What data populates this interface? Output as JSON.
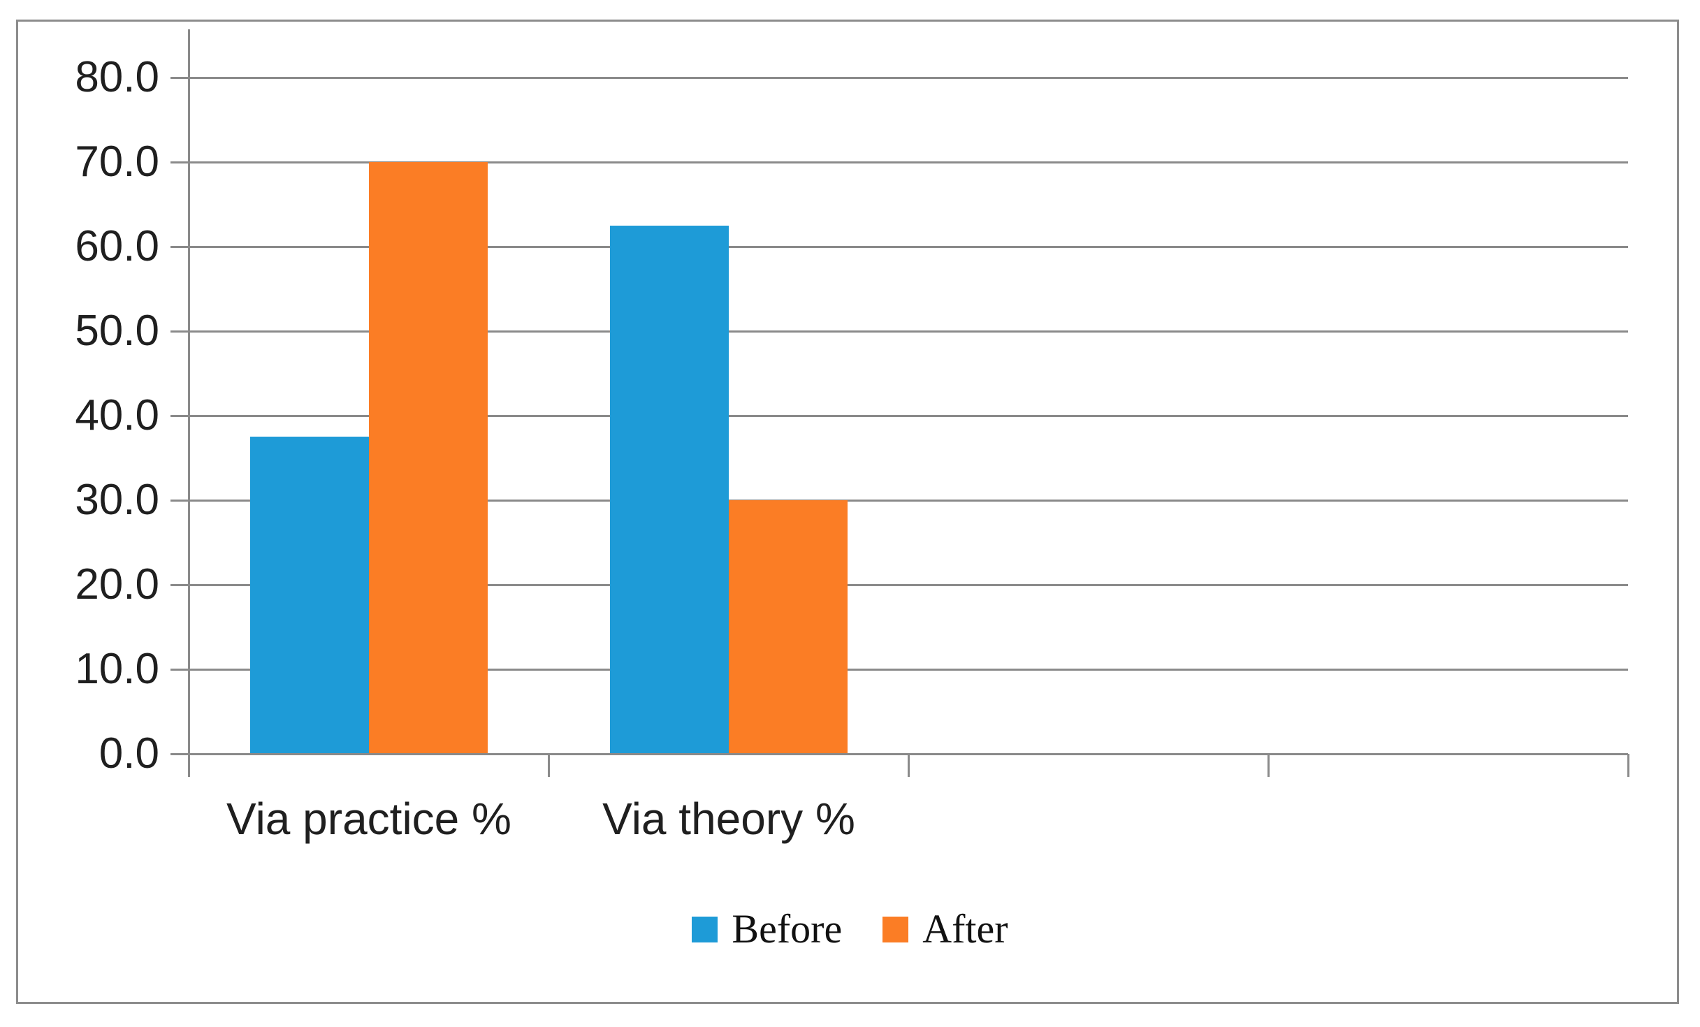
{
  "chart_data": {
    "type": "bar",
    "title": "",
    "categories": [
      "Via practice %",
      "Via theory %"
    ],
    "series": [
      {
        "name": "Before",
        "color": "#1E9BD7",
        "values": [
          37.5,
          62.5
        ]
      },
      {
        "name": "After",
        "color": "#FB7D25",
        "values": [
          70.0,
          30.0
        ]
      }
    ],
    "ylim": [
      0,
      80
    ],
    "y_ticks": [
      {
        "value": 0,
        "label": "0.0"
      },
      {
        "value": 10,
        "label": "10.0"
      },
      {
        "value": 20,
        "label": "20.0"
      },
      {
        "value": 30,
        "label": "30.0"
      },
      {
        "value": 40,
        "label": "40.0"
      },
      {
        "value": 50,
        "label": "50.0"
      },
      {
        "value": 60,
        "label": "60.0"
      },
      {
        "value": 70,
        "label": "70.0"
      },
      {
        "value": 80,
        "label": "80.0"
      }
    ],
    "x_slot_count": 4,
    "grid": true,
    "legend_position": "bottom",
    "colors": {
      "gridline": "#8A8A8A",
      "axis": "#8A8A8A",
      "frame_border": "#8C8C8C",
      "label_text": "#1F1F1F"
    }
  }
}
